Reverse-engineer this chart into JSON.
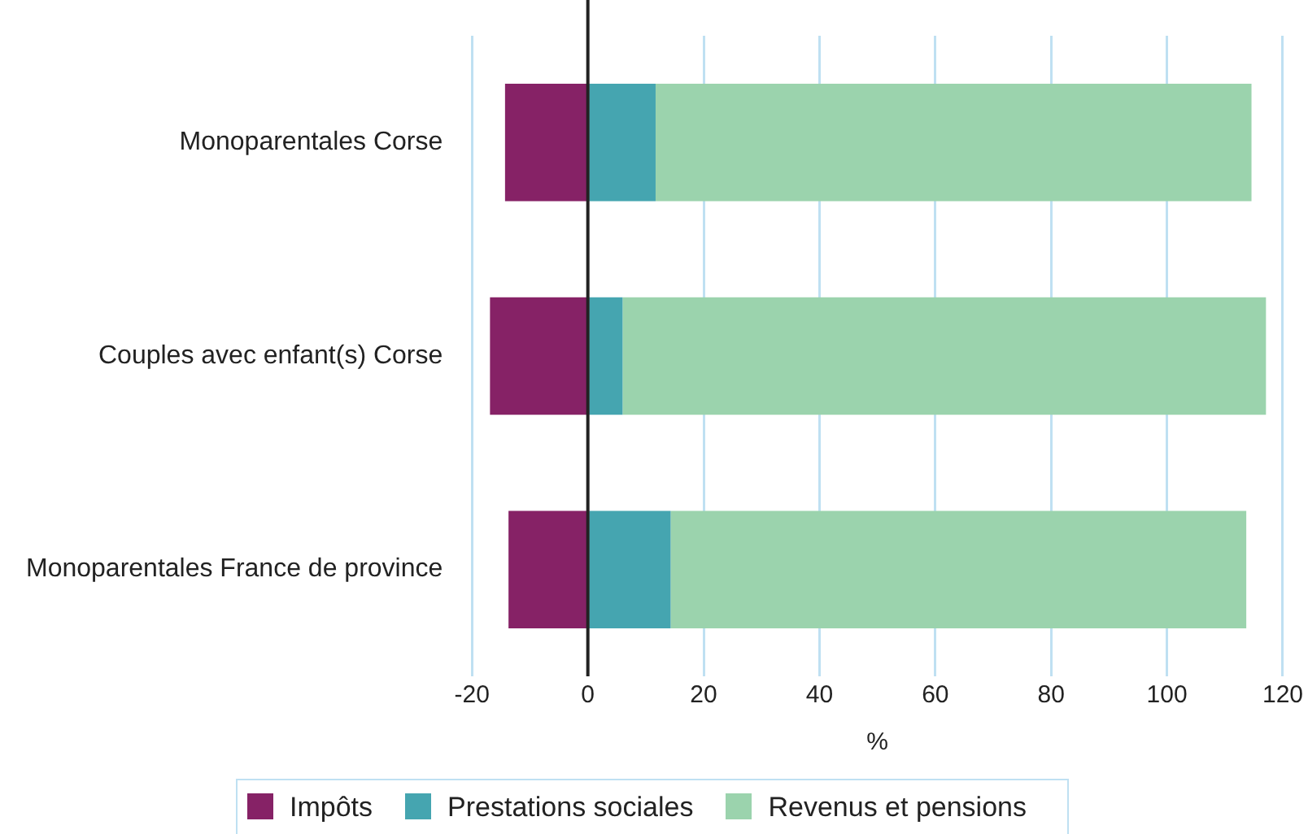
{
  "chart_data": {
    "type": "bar",
    "orientation": "horizontal",
    "stacked": true,
    "xlabel": "%",
    "categories": [
      "Monoparentales Corse",
      "Couples avec enfant(s) Corse",
      "Monoparentales France de province"
    ],
    "series": [
      {
        "name": "Impôts",
        "color": "#862266",
        "values": [
          -14.3,
          -16.9,
          -13.7
        ]
      },
      {
        "name": "Prestations sociales",
        "color": "#45a5b0",
        "values": [
          11.7,
          6.0,
          14.3
        ]
      },
      {
        "name": "Revenus et pensions",
        "color": "#9bd3ad",
        "values": [
          102.9,
          111.1,
          99.4
        ]
      }
    ],
    "xlim": [
      -20,
      120
    ],
    "xticks": [
      -20,
      0,
      20,
      40,
      60,
      80,
      100,
      120
    ],
    "grid": "x",
    "legend": "bottom",
    "ref_lines": [
      {
        "axis": "x",
        "value": 0,
        "color": "#222222"
      }
    ]
  }
}
